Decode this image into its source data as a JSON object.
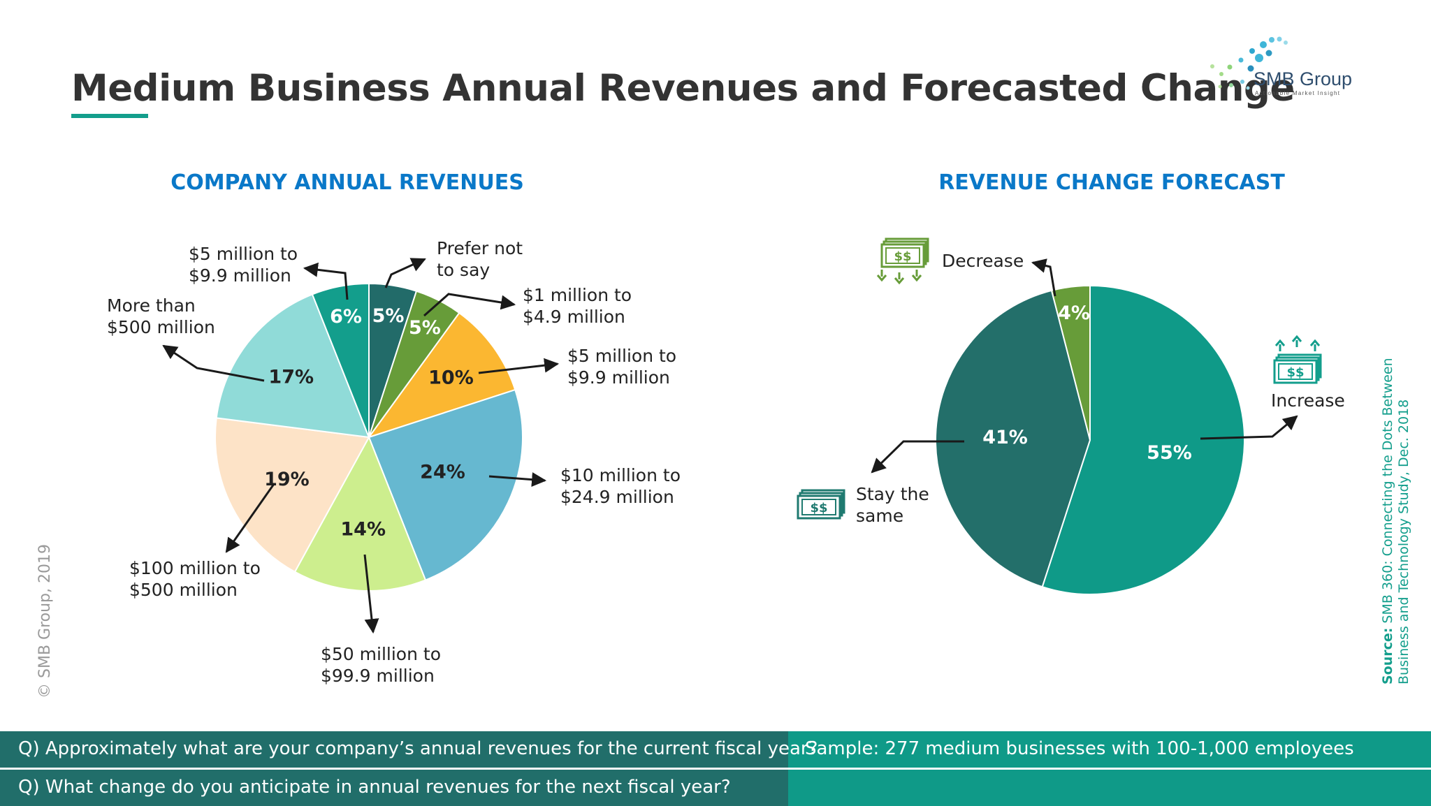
{
  "header": {
    "title": "Medium Business Annual Revenues and Forecasted Change",
    "logo_name": "SMB Group",
    "logo_tagline": "Actionable Market Insight"
  },
  "copyright": "© SMB Group, 2019",
  "source": {
    "label": "Source:",
    "line1": "SMB 360: Connecting the Dots Between",
    "line2": "Business and Technology  Study, Dec. 2018"
  },
  "footer": {
    "question1": "Q) Approximately what are your company’s annual revenues for the current fiscal year?",
    "question2": "Q) What change do you anticipate in annual revenues for the next fiscal year?",
    "sample": "Sample: 277 medium businesses with 100-1,000 employees"
  },
  "colors": {
    "accent_teal": "#139e8c",
    "title_blue": "#0a78c8",
    "footer_dark": "#216e6a"
  },
  "chart_data": [
    {
      "type": "pie",
      "title": "COMPANY ANNUAL REVENUES",
      "slices": [
        {
          "label": [
            "Prefer not",
            "to say"
          ],
          "value": 5,
          "value_label": "5%",
          "color": "#226b69",
          "text_color": "#ffffff"
        },
        {
          "label": [
            "$1 million to",
            "$4.9 million"
          ],
          "value": 5,
          "value_label": "5%",
          "color": "#679c39",
          "text_color": "#ffffff"
        },
        {
          "label": [
            "$5 million to",
            "$9.9 million"
          ],
          "value": 10,
          "value_label": "10%",
          "color": "#fbb731",
          "text_color": "#222222"
        },
        {
          "label": [
            "$10 million to",
            "$24.9 million"
          ],
          "value": 24,
          "value_label": "24%",
          "color": "#66b8d0",
          "text_color": "#222222"
        },
        {
          "label": [
            "$50 million to",
            "$99.9 million"
          ],
          "value": 14,
          "value_label": "14%",
          "color": "#cdee8e",
          "text_color": "#222222"
        },
        {
          "label": [
            "$100 million to",
            "$500 million"
          ],
          "value": 19,
          "value_label": "19%",
          "color": "#fde3c7",
          "text_color": "#222222"
        },
        {
          "label": [
            "More than",
            "$500 million"
          ],
          "value": 17,
          "value_label": "17%",
          "color": "#90dbd8",
          "text_color": "#222222"
        },
        {
          "label": [
            "$5 million to",
            "$9.9 million"
          ],
          "value": 6,
          "value_label": "6%",
          "color": "#139e8c",
          "text_color": "#ffffff"
        }
      ]
    },
    {
      "type": "pie",
      "title": "REVENUE CHANGE FORECAST",
      "slices": [
        {
          "label": [
            "Increase"
          ],
          "value": 55,
          "value_label": "55%",
          "color": "#0f9a88",
          "text_color": "#ffffff",
          "icon": "money-up-icon"
        },
        {
          "label": [
            "Stay the",
            "same"
          ],
          "value": 41,
          "value_label": "41%",
          "color": "#236f6a",
          "text_color": "#ffffff",
          "icon": "money-icon"
        },
        {
          "label": [
            "Decrease"
          ],
          "value": 4,
          "value_label": "4%",
          "color": "#679c39",
          "text_color": "#ffffff",
          "icon": "money-down-icon"
        }
      ]
    }
  ]
}
